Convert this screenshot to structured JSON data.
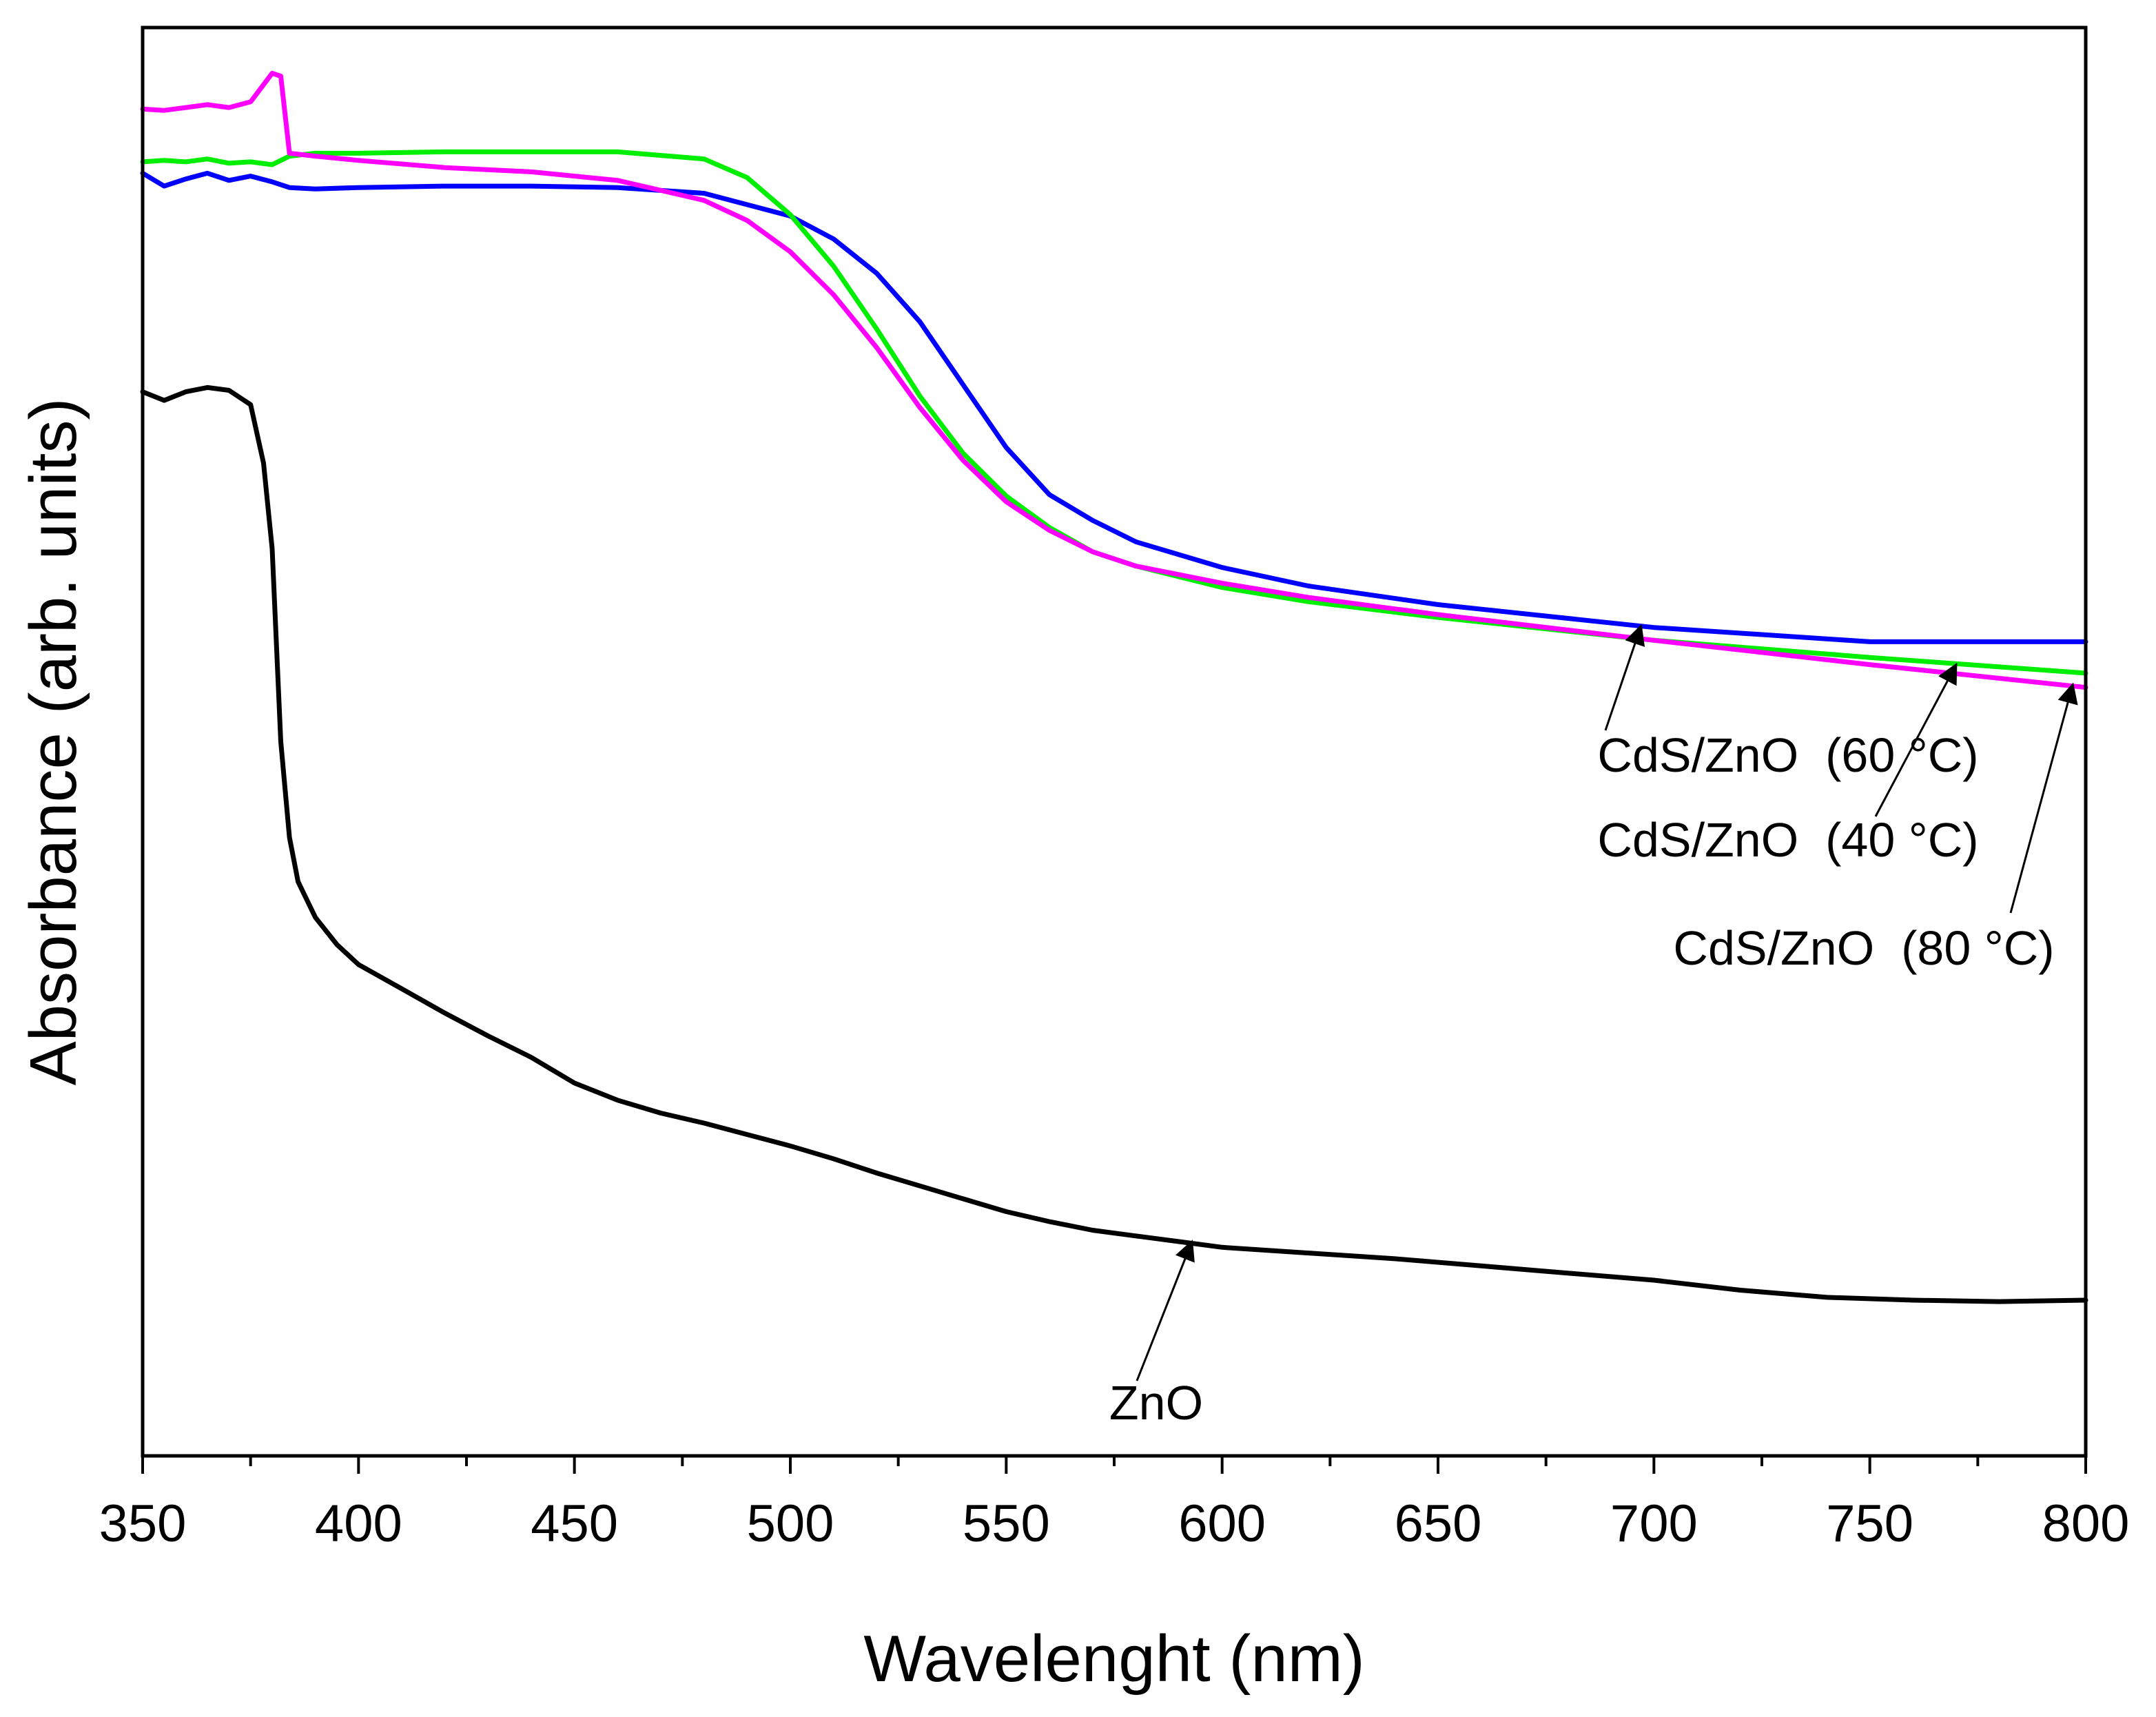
{
  "chart_data": {
    "type": "line",
    "title": "",
    "xlabel": "Wavelenght (nm)",
    "ylabel": "Absorbance (arb. units)",
    "xlim": [
      350,
      800
    ],
    "ylim": [
      0,
      100
    ],
    "x_ticks": [
      350,
      400,
      450,
      500,
      550,
      600,
      650,
      700,
      750,
      800
    ],
    "y_ticks_labeled": false,
    "grid": false,
    "legend": "none (direct labels with arrows)",
    "series": [
      {
        "name": "ZnO",
        "color": "#000000",
        "x": [
          350,
          355,
          360,
          365,
          370,
          375,
          378,
          380,
          382,
          384,
          386,
          390,
          395,
          400,
          410,
          420,
          430,
          440,
          450,
          460,
          470,
          480,
          490,
          500,
          510,
          520,
          530,
          540,
          550,
          560,
          570,
          580,
          590,
          600,
          620,
          640,
          660,
          680,
          700,
          720,
          740,
          760,
          780,
          800
        ],
        "y": [
          74.5,
          73.9,
          74.5,
          74.8,
          74.6,
          73.6,
          69.5,
          63.5,
          50.0,
          43.3,
          40.2,
          37.7,
          35.8,
          34.4,
          32.7,
          31.0,
          29.4,
          27.9,
          26.1,
          24.9,
          24.0,
          23.3,
          22.5,
          21.7,
          20.8,
          19.8,
          18.9,
          18.0,
          17.1,
          16.4,
          15.8,
          15.4,
          15.0,
          14.6,
          14.2,
          13.8,
          13.3,
          12.8,
          12.3,
          11.6,
          11.1,
          10.9,
          10.8,
          10.9
        ]
      },
      {
        "name": "CdS/ZnO (60 °C)",
        "color": "#0000ff",
        "x": [
          350,
          355,
          360,
          365,
          370,
          375,
          380,
          384,
          390,
          400,
          420,
          440,
          460,
          480,
          500,
          510,
          520,
          530,
          540,
          550,
          560,
          570,
          580,
          600,
          620,
          650,
          700,
          750,
          800
        ],
        "y": [
          89.8,
          88.9,
          89.4,
          89.8,
          89.3,
          89.6,
          89.2,
          88.8,
          88.7,
          88.8,
          88.9,
          88.9,
          88.8,
          88.4,
          86.8,
          85.2,
          82.8,
          79.4,
          75.0,
          70.6,
          67.3,
          65.5,
          64.0,
          62.2,
          60.9,
          59.6,
          58.0,
          57.0,
          57.0
        ]
      },
      {
        "name": "CdS/ZnO (40 °C)",
        "color": "#00ee00",
        "x": [
          350,
          355,
          360,
          365,
          370,
          375,
          380,
          384,
          390,
          400,
          420,
          440,
          460,
          480,
          490,
          500,
          510,
          520,
          530,
          540,
          550,
          560,
          570,
          580,
          600,
          620,
          650,
          700,
          750,
          800
        ],
        "y": [
          90.6,
          90.7,
          90.6,
          90.8,
          90.5,
          90.6,
          90.4,
          91.0,
          91.2,
          91.2,
          91.3,
          91.3,
          91.3,
          90.8,
          89.5,
          86.9,
          83.3,
          78.9,
          74.2,
          70.2,
          67.2,
          65.0,
          63.3,
          62.3,
          60.8,
          59.8,
          58.7,
          57.1,
          55.9,
          54.8
        ]
      },
      {
        "name": "CdS/ZnO (80 °C)",
        "color": "#ff00ff",
        "x": [
          350,
          355,
          360,
          365,
          370,
          375,
          380,
          382,
          384,
          390,
          400,
          420,
          440,
          460,
          480,
          490,
          500,
          510,
          520,
          530,
          540,
          550,
          560,
          570,
          580,
          600,
          620,
          650,
          700,
          750,
          800
        ],
        "y": [
          94.3,
          94.2,
          94.4,
          94.6,
          94.4,
          94.8,
          96.8,
          96.6,
          91.2,
          91.0,
          90.7,
          90.2,
          89.9,
          89.3,
          87.9,
          86.5,
          84.3,
          81.3,
          77.6,
          73.4,
          69.7,
          66.8,
          64.8,
          63.3,
          62.3,
          61.1,
          60.1,
          58.9,
          57.1,
          55.4,
          53.8
        ]
      }
    ],
    "annotations": [
      {
        "label": "ZnO",
        "series": "ZnO",
        "arrow_to": {
          "x": 593,
          "y": 15.0
        }
      },
      {
        "label": "CdS/ZnO  (60 °C)",
        "series": "CdS/ZnO (60 °C)",
        "arrow_to": {
          "x": 697,
          "y": 58.1
        }
      },
      {
        "label": "CdS/ZnO  (40 °C)",
        "series": "CdS/ZnO (40 °C)",
        "arrow_to": {
          "x": 770,
          "y": 55.4
        }
      },
      {
        "label": "CdS/ZnO  (80 °C)",
        "series": "CdS/ZnO (80 °C)",
        "arrow_to": {
          "x": 797,
          "y": 54.0
        }
      }
    ]
  }
}
